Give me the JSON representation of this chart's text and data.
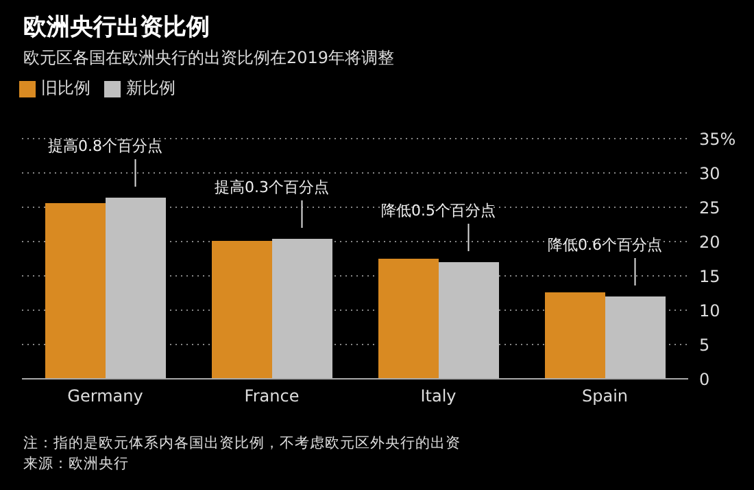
{
  "chart_data": {
    "type": "bar",
    "title": "欧洲央行出资比例",
    "subtitle": "欧元区各国在欧洲央行的出资比例在2019年将调整",
    "categories": [
      "Germany",
      "France",
      "Italy",
      "Spain"
    ],
    "series": [
      {
        "name": "旧比例",
        "color": "#d98a22",
        "values": [
          25.6,
          20.1,
          17.5,
          12.6
        ]
      },
      {
        "name": "新比例",
        "color": "#c0c0c0",
        "values": [
          26.4,
          20.4,
          17.0,
          12.0
        ]
      }
    ],
    "ylim": [
      0,
      35
    ],
    "yticks": [
      0,
      5,
      10,
      15,
      20,
      25,
      30,
      {
        "value": 35,
        "label": "35%"
      }
    ],
    "grid": "y",
    "legend": "top left",
    "annotations": [
      {
        "text": "提高0.8个百分点",
        "x": "Germany",
        "y": 26.4
      },
      {
        "text": "提高0.3个百分点",
        "x": "France",
        "y": 20.4
      },
      {
        "text": "降低0.5个百分点",
        "x": "Italy",
        "y": 17.0
      },
      {
        "text": "降低0.6个百分点",
        "x": "Spain",
        "y": 12.0
      },
      "注：指的是欧元体系内各国出资比例，不考虑欧元区外央行的出资",
      "来源：欧洲央行"
    ]
  }
}
